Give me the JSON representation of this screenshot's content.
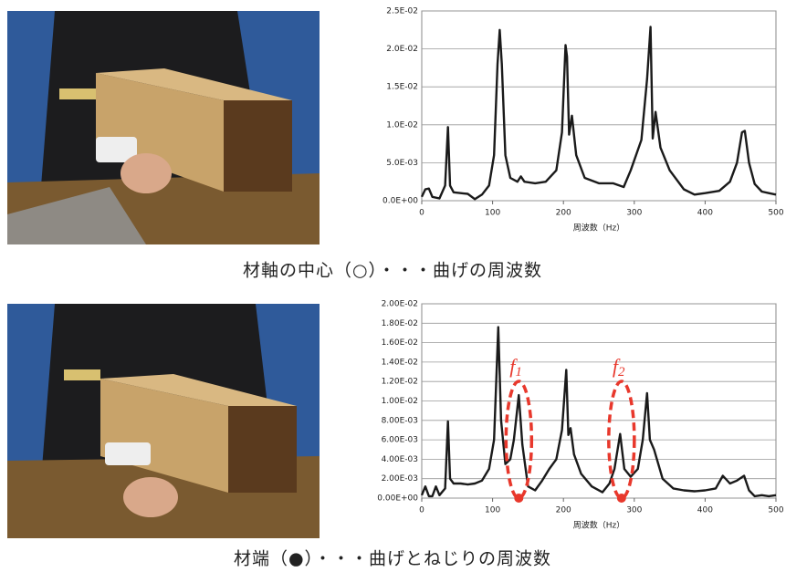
{
  "chart_data": [
    {
      "type": "line",
      "caption": "材軸の中心（○）・・・曲げの周波数",
      "x_label": "周波数（Hz）",
      "xlim": [
        0,
        500
      ],
      "xticks": [
        0,
        100,
        200,
        300,
        400,
        500
      ],
      "ylim": [
        0,
        0.025
      ],
      "yticks": [
        {
          "value": 0,
          "label": "0.0E+00"
        },
        {
          "value": 0.005,
          "label": "5.0E-03"
        },
        {
          "value": 0.01,
          "label": "1.0E-02"
        },
        {
          "value": 0.015,
          "label": "1.5E-02"
        },
        {
          "value": 0.02,
          "label": "2.0E-02"
        },
        {
          "value": 0.025,
          "label": "2.5E-02"
        }
      ],
      "grid": true,
      "series": [
        {
          "color": "#1a1a1a",
          "x": [
            0,
            5,
            10,
            15,
            25,
            33,
            37,
            40,
            45,
            55,
            65,
            75,
            85,
            95,
            102,
            107,
            110,
            113,
            118,
            125,
            135,
            140,
            145,
            160,
            175,
            190,
            198,
            203,
            205,
            208,
            212,
            218,
            230,
            250,
            270,
            285,
            295,
            310,
            318,
            323,
            326,
            330,
            337,
            350,
            370,
            385,
            400,
            420,
            435,
            445,
            452,
            456,
            462,
            470,
            480,
            490,
            500
          ],
          "values": [
            0.0005,
            0.0015,
            0.0016,
            0.0005,
            0.0003,
            0.002,
            0.0097,
            0.002,
            0.0011,
            0.001,
            0.0009,
            0.0002,
            0.0008,
            0.002,
            0.006,
            0.018,
            0.0225,
            0.018,
            0.006,
            0.003,
            0.0025,
            0.0032,
            0.0025,
            0.0023,
            0.0025,
            0.004,
            0.009,
            0.0205,
            0.019,
            0.0087,
            0.0112,
            0.006,
            0.003,
            0.0023,
            0.0023,
            0.0018,
            0.004,
            0.008,
            0.016,
            0.0229,
            0.0082,
            0.0117,
            0.007,
            0.004,
            0.0015,
            0.0008,
            0.001,
            0.0013,
            0.0025,
            0.005,
            0.009,
            0.0092,
            0.005,
            0.0022,
            0.0012,
            0.001,
            0.0008
          ]
        }
      ]
    },
    {
      "type": "line",
      "caption": "材端（●）・・・曲げとねじりの周波数",
      "x_label": "周波数（Hz）",
      "xlim": [
        0,
        500
      ],
      "xticks": [
        0,
        100,
        200,
        300,
        400,
        500
      ],
      "ylim": [
        0,
        0.02
      ],
      "yticks": [
        {
          "value": 0,
          "label": "0.00E+00"
        },
        {
          "value": 0.002,
          "label": "2.00E-03"
        },
        {
          "value": 0.004,
          "label": "4.00E-03"
        },
        {
          "value": 0.006,
          "label": "6.00E-03"
        },
        {
          "value": 0.008,
          "label": "8.00E-03"
        },
        {
          "value": 0.01,
          "label": "1.00E-02"
        },
        {
          "value": 0.012,
          "label": "1.20E-02"
        },
        {
          "value": 0.014,
          "label": "1.40E-02"
        },
        {
          "value": 0.016,
          "label": "1.60E-02"
        },
        {
          "value": 0.018,
          "label": "1.80E-02"
        },
        {
          "value": 0.02,
          "label": "2.00E-02"
        }
      ],
      "grid": true,
      "annotations": [
        {
          "label": "f",
          "subscript": "1",
          "x": 137,
          "color": "#e8382c"
        },
        {
          "label": "f",
          "subscript": "2",
          "x": 282,
          "color": "#e8382c"
        }
      ],
      "series": [
        {
          "color": "#1a1a1a",
          "x": [
            0,
            5,
            10,
            15,
            20,
            25,
            33,
            37,
            40,
            45,
            55,
            65,
            75,
            85,
            95,
            102,
            108,
            112,
            118,
            125,
            130,
            137,
            142,
            150,
            160,
            170,
            180,
            190,
            198,
            204,
            207,
            210,
            215,
            225,
            240,
            255,
            265,
            272,
            280,
            286,
            295,
            305,
            312,
            318,
            322,
            328,
            332,
            340,
            355,
            370,
            385,
            400,
            415,
            425,
            435,
            445,
            455,
            462,
            470,
            480,
            490,
            500
          ],
          "values": [
            0.0003,
            0.0012,
            0.0002,
            0.0002,
            0.0012,
            0.0003,
            0.001,
            0.0079,
            0.002,
            0.0015,
            0.0015,
            0.0014,
            0.0015,
            0.0018,
            0.003,
            0.006,
            0.0176,
            0.008,
            0.0035,
            0.004,
            0.006,
            0.0106,
            0.0055,
            0.0012,
            0.0008,
            0.0018,
            0.003,
            0.004,
            0.007,
            0.0132,
            0.0065,
            0.0072,
            0.0045,
            0.0025,
            0.0012,
            0.0006,
            0.0015,
            0.003,
            0.0066,
            0.003,
            0.0022,
            0.003,
            0.006,
            0.0108,
            0.006,
            0.005,
            0.004,
            0.002,
            0.001,
            0.0008,
            0.0007,
            0.0008,
            0.001,
            0.0023,
            0.0015,
            0.0018,
            0.0023,
            0.0008,
            0.0002,
            0.0003,
            0.0002,
            0.0003
          ]
        }
      ]
    }
  ]
}
